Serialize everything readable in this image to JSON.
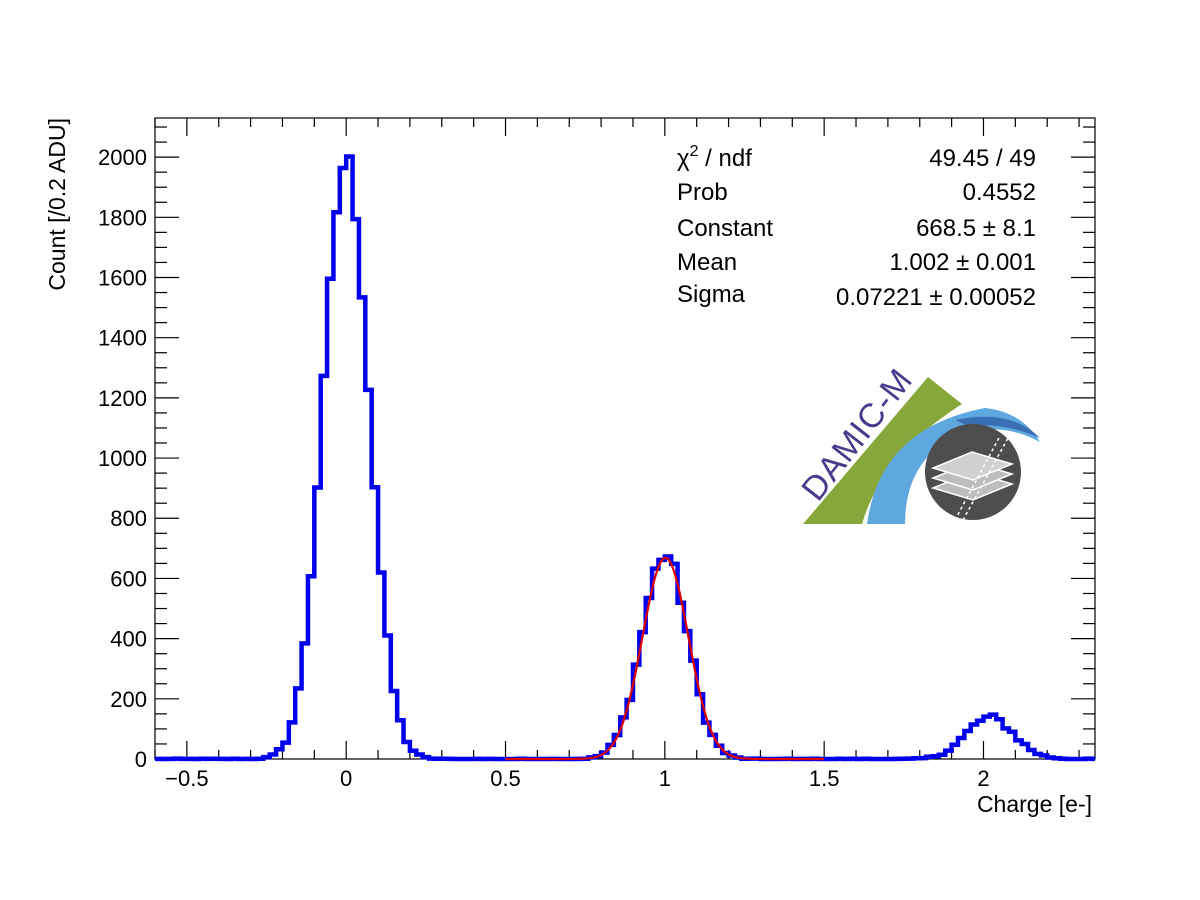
{
  "chart_data": {
    "type": "histogram",
    "xlabel": "Charge [e-]",
    "ylabel": "Count [/0.2 ADU]",
    "xlim": [
      -0.6,
      2.35
    ],
    "ylim": [
      0,
      2130
    ],
    "x_ticks": [
      -0.5,
      0,
      0.5,
      1,
      1.5,
      2
    ],
    "x_tick_labels": [
      "−0.5",
      "0",
      "0.5",
      "1",
      "1.5",
      "2"
    ],
    "y_ticks": [
      0,
      200,
      400,
      600,
      800,
      1000,
      1200,
      1400,
      1600,
      1800,
      2000
    ],
    "y_tick_labels": [
      "0",
      "200",
      "400",
      "600",
      "800",
      "1000",
      "1200",
      "1400",
      "1600",
      "1800",
      "2000"
    ],
    "grid": false,
    "series": [
      {
        "kind": "histogram",
        "color": "#0000ee",
        "peaks": [
          {
            "center": 0.0,
            "height": 1990,
            "sigma": 0.072
          },
          {
            "center": 1.0,
            "height": 680,
            "sigma": 0.072
          },
          {
            "center": 2.02,
            "height": 138,
            "sigma": 0.075
          }
        ],
        "bin_width": 0.02
      },
      {
        "kind": "fit",
        "color": "#dd0000",
        "function": "gaus",
        "range": [
          0.5,
          1.5
        ],
        "constant": 668.5,
        "mean": 1.002,
        "sigma": 0.07221
      }
    ],
    "stats_box": {
      "rows": [
        {
          "label_base": "χ",
          "label_sup": "2",
          "label_rest": " / ndf",
          "value": "49.45 / 49"
        },
        {
          "label": "Prob",
          "value": "0.4552"
        },
        {
          "label": "Constant",
          "value": "668.5 ± 8.1"
        },
        {
          "label": "Mean",
          "value": "1.002 ± 0.001"
        },
        {
          "label": "Sigma",
          "value": "0.07221 ± 0.00052"
        }
      ]
    },
    "logo": {
      "text": "DAMIC-M",
      "colors": {
        "green": "#86a83a",
        "blue": "#5fa8df",
        "dark_blue": "#3b6fb5",
        "disc": "#4d4d4d",
        "text": "#4a3a8c"
      }
    }
  }
}
